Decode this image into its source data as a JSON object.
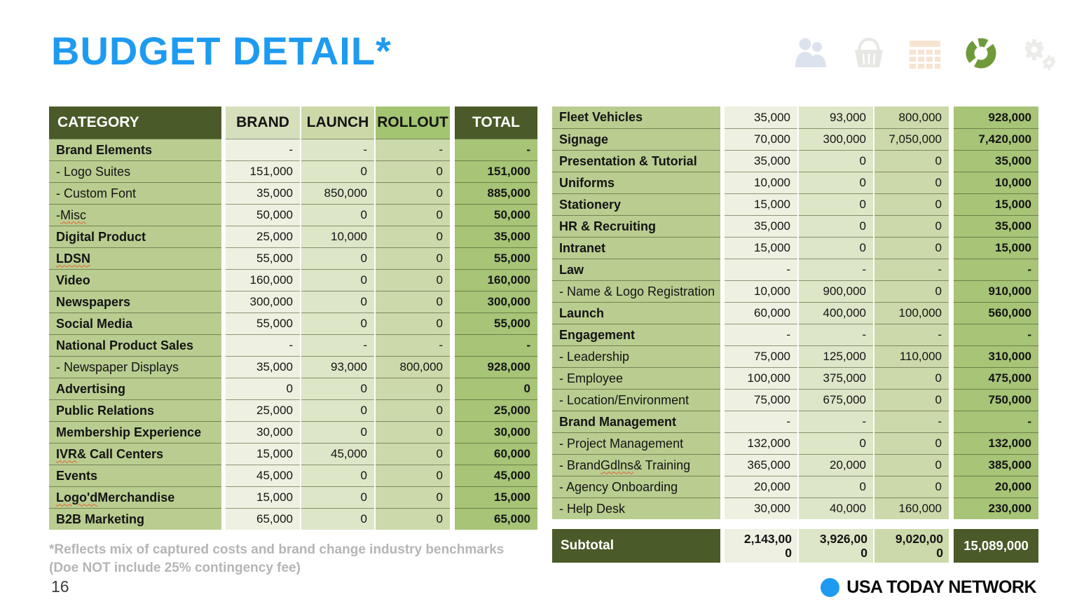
{
  "page": {
    "title": "BUDGET DETAIL*",
    "number": "16"
  },
  "logo": {
    "text": "USA TODAY NETWORK"
  },
  "footnote": {
    "line1": "*Reflects mix of captured costs and brand change industry benchmarks",
    "line2": "(Doe NOT include 25% contingency fee)"
  },
  "icons": [
    {
      "name": "people-icon",
      "active": false
    },
    {
      "name": "basket-icon",
      "active": false
    },
    {
      "name": "grid-icon",
      "active": false
    },
    {
      "name": "donut-chart-icon",
      "active": true
    },
    {
      "name": "gears-icon",
      "active": false
    }
  ],
  "colors": {
    "title_blue": "#1e9bf0",
    "dark_olive": "#4a5a28",
    "category_column": "#b9cd90",
    "brand_column": "#eef1e1",
    "launch_column": "#dde6c7",
    "rollout_column": "#ccd9aa",
    "total_column": "#a7c477",
    "brand_header": "#d6dfbc",
    "launch_header": "#ccd8a8",
    "rollout_header": "#a3c471",
    "footnote_gray": "#b5b5b5",
    "logo_blue": "#1e9bf0",
    "squiggle_red": "#e2603a",
    "donut_green": "#6f9a39"
  },
  "tables": {
    "left": {
      "headers": [
        "CATEGORY",
        "BRAND",
        "LAUNCH",
        "ROLLOUT",
        "TOTAL"
      ],
      "rows": [
        {
          "pre": "Brand Elements",
          "sq": "",
          "post": "",
          "bold": true,
          "values": [
            "-",
            "-",
            "-",
            "-"
          ]
        },
        {
          "pre": "- Logo Suites",
          "sq": "",
          "post": "",
          "bold": false,
          "values": [
            "151,000",
            "0",
            "0",
            "151,000"
          ]
        },
        {
          "pre": "- Custom Font",
          "sq": "",
          "post": "",
          "bold": false,
          "values": [
            "35,000",
            "850,000",
            "0",
            "885,000"
          ]
        },
        {
          "pre": "- ",
          "sq": "Misc",
          "post": "",
          "bold": false,
          "values": [
            "50,000",
            "0",
            "0",
            "50,000"
          ]
        },
        {
          "pre": "Digital Product",
          "sq": "",
          "post": "",
          "bold": true,
          "values": [
            "25,000",
            "10,000",
            "0",
            "35,000"
          ]
        },
        {
          "pre": "",
          "sq": "LDSN",
          "post": "",
          "bold": true,
          "values": [
            "55,000",
            "0",
            "0",
            "55,000"
          ]
        },
        {
          "pre": "Video",
          "sq": "",
          "post": "",
          "bold": true,
          "values": [
            "160,000",
            "0",
            "0",
            "160,000"
          ]
        },
        {
          "pre": "Newspapers",
          "sq": "",
          "post": "",
          "bold": true,
          "values": [
            "300,000",
            "0",
            "0",
            "300,000"
          ]
        },
        {
          "pre": "Social Media",
          "sq": "",
          "post": "",
          "bold": true,
          "values": [
            "55,000",
            "0",
            "0",
            "55,000"
          ]
        },
        {
          "pre": "National Product Sales",
          "sq": "",
          "post": "",
          "bold": true,
          "values": [
            "-",
            "-",
            "-",
            "-"
          ]
        },
        {
          "pre": "- Newspaper Displays",
          "sq": "",
          "post": "",
          "bold": false,
          "values": [
            "35,000",
            "93,000",
            "800,000",
            "928,000"
          ]
        },
        {
          "pre": "Advertising",
          "sq": "",
          "post": "",
          "bold": true,
          "values": [
            "0",
            "0",
            "0",
            "0"
          ]
        },
        {
          "pre": "Public Relations",
          "sq": "",
          "post": "",
          "bold": true,
          "values": [
            "25,000",
            "0",
            "0",
            "25,000"
          ]
        },
        {
          "pre": "Membership Experience",
          "sq": "",
          "post": "",
          "bold": true,
          "values": [
            "30,000",
            "0",
            "0",
            "30,000"
          ]
        },
        {
          "pre": "",
          "sq": "IVR",
          "post": " & Call Centers",
          "bold": true,
          "values": [
            "15,000",
            "45,000",
            "0",
            "60,000"
          ]
        },
        {
          "pre": "Events",
          "sq": "",
          "post": "",
          "bold": true,
          "values": [
            "45,000",
            "0",
            "0",
            "45,000"
          ]
        },
        {
          "pre": "",
          "sq": "Logo'd",
          "post": " Merchandise",
          "bold": true,
          "values": [
            "15,000",
            "0",
            "0",
            "15,000"
          ]
        },
        {
          "pre": "B2B Marketing",
          "sq": "",
          "post": "",
          "bold": true,
          "values": [
            "65,000",
            "0",
            "0",
            "65,000"
          ]
        }
      ]
    },
    "right": {
      "rows": [
        {
          "pre": "Fleet Vehicles",
          "sq": "",
          "post": "",
          "bold": true,
          "values": [
            "35,000",
            "93,000",
            "800,000",
            "928,000"
          ]
        },
        {
          "pre": "Signage",
          "sq": "",
          "post": "",
          "bold": true,
          "values": [
            "70,000",
            "300,000",
            "7,050,000",
            "7,420,000"
          ]
        },
        {
          "pre": "Presentation & Tutorial",
          "sq": "",
          "post": "",
          "bold": true,
          "values": [
            "35,000",
            "0",
            "0",
            "35,000"
          ]
        },
        {
          "pre": "Uniforms",
          "sq": "",
          "post": "",
          "bold": true,
          "values": [
            "10,000",
            "0",
            "0",
            "10,000"
          ]
        },
        {
          "pre": "Stationery",
          "sq": "",
          "post": "",
          "bold": true,
          "values": [
            "15,000",
            "0",
            "0",
            "15,000"
          ]
        },
        {
          "pre": "HR & Recruiting",
          "sq": "",
          "post": "",
          "bold": true,
          "values": [
            "35,000",
            "0",
            "0",
            "35,000"
          ]
        },
        {
          "pre": "Intranet",
          "sq": "",
          "post": "",
          "bold": true,
          "values": [
            "15,000",
            "0",
            "0",
            "15,000"
          ]
        },
        {
          "pre": "Law",
          "sq": "",
          "post": "",
          "bold": true,
          "values": [
            "-",
            "-",
            "-",
            "-"
          ]
        },
        {
          "pre": "- Name & Logo Registration",
          "sq": "",
          "post": "",
          "bold": false,
          "values": [
            "10,000",
            "900,000",
            "0",
            "910,000"
          ]
        },
        {
          "pre": "Launch",
          "sq": "",
          "post": "",
          "bold": true,
          "values": [
            "60,000",
            "400,000",
            "100,000",
            "560,000"
          ]
        },
        {
          "pre": "Engagement",
          "sq": "",
          "post": "",
          "bold": true,
          "values": [
            "-",
            "-",
            "-",
            "-"
          ]
        },
        {
          "pre": "- Leadership",
          "sq": "",
          "post": "",
          "bold": false,
          "values": [
            "75,000",
            "125,000",
            "110,000",
            "310,000"
          ]
        },
        {
          "pre": "- Employee",
          "sq": "",
          "post": "",
          "bold": false,
          "values": [
            "100,000",
            "375,000",
            "0",
            "475,000"
          ]
        },
        {
          "pre": "- Location/Environment",
          "sq": "",
          "post": "",
          "bold": false,
          "values": [
            "75,000",
            "675,000",
            "0",
            "750,000"
          ]
        },
        {
          "pre": "Brand Management",
          "sq": "",
          "post": "",
          "bold": true,
          "values": [
            "-",
            "-",
            "-",
            "-"
          ]
        },
        {
          "pre": "- Project Management",
          "sq": "",
          "post": "",
          "bold": false,
          "values": [
            "132,000",
            "0",
            "0",
            "132,000"
          ]
        },
        {
          "pre": "- Brand ",
          "sq": "Gdlns",
          "post": " & Training",
          "bold": false,
          "values": [
            "365,000",
            "20,000",
            "0",
            "385,000"
          ]
        },
        {
          "pre": "- Agency Onboarding",
          "sq": "",
          "post": "",
          "bold": false,
          "values": [
            "20,000",
            "0",
            "0",
            "20,000"
          ]
        },
        {
          "pre": "- Help Desk",
          "sq": "",
          "post": "",
          "bold": false,
          "values": [
            "30,000",
            "40,000",
            "160,000",
            "230,000"
          ]
        }
      ]
    },
    "subtotal": {
      "label": "Subtotal",
      "values": [
        "2,143,000",
        "3,926,000",
        "9,020,000"
      ],
      "total": "15,089,000"
    }
  }
}
